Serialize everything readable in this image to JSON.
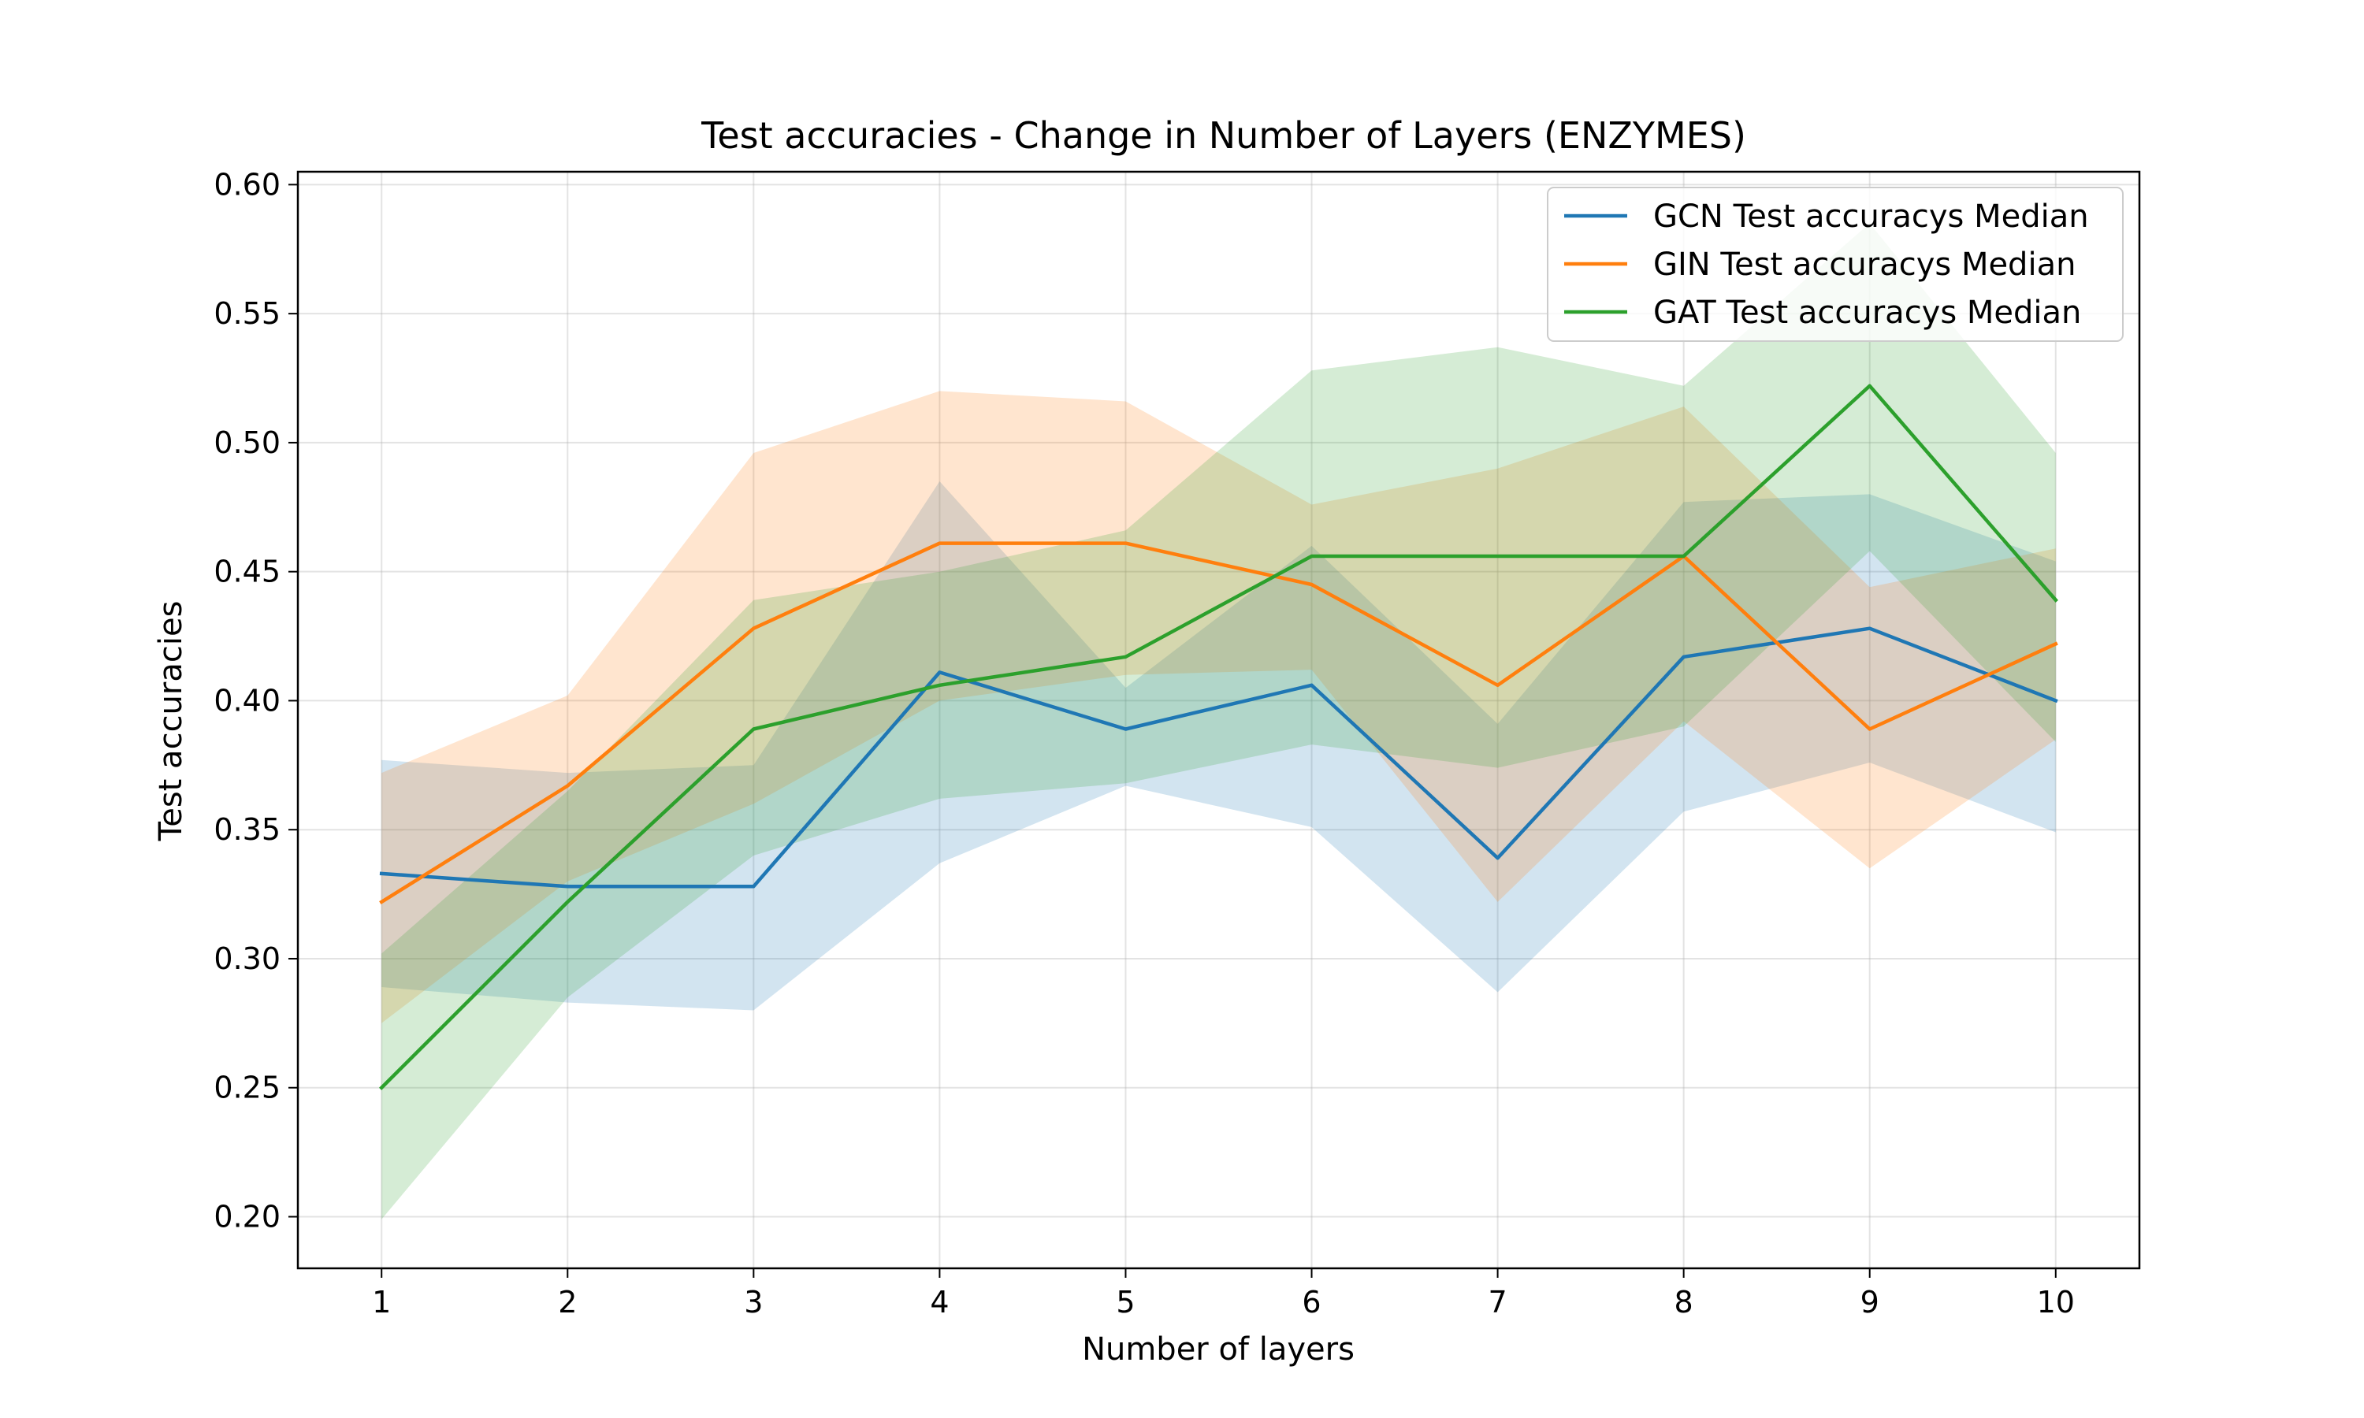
{
  "chart_data": {
    "type": "line",
    "title": "Test accuracies - Change in Number of Layers (ENZYMES)",
    "xlabel": "Number of layers",
    "ylabel": "Test accuracies",
    "x": [
      1,
      2,
      3,
      4,
      5,
      6,
      7,
      8,
      9,
      10
    ],
    "xlim": [
      0.55,
      10.45
    ],
    "ylim": [
      0.18,
      0.605
    ],
    "yticks": [
      0.2,
      0.25,
      0.3,
      0.35,
      0.4,
      0.45,
      0.5,
      0.55,
      0.6
    ],
    "ytick_labels": [
      "0.20",
      "0.25",
      "0.30",
      "0.35",
      "0.40",
      "0.45",
      "0.50",
      "0.55",
      "0.60"
    ],
    "xtick_labels": [
      "1",
      "2",
      "3",
      "4",
      "5",
      "6",
      "7",
      "8",
      "9",
      "10"
    ],
    "grid": true,
    "legend_position": "top-right",
    "series": [
      {
        "name": "GCN Test accuracys Median",
        "color": "#1f77b4",
        "values": [
          0.333,
          0.328,
          0.328,
          0.411,
          0.389,
          0.406,
          0.339,
          0.417,
          0.428,
          0.4
        ],
        "band_upper": [
          0.377,
          0.372,
          0.375,
          0.485,
          0.405,
          0.46,
          0.391,
          0.477,
          0.48,
          0.454
        ],
        "band_lower": [
          0.289,
          0.283,
          0.28,
          0.337,
          0.367,
          0.351,
          0.287,
          0.357,
          0.376,
          0.349
        ]
      },
      {
        "name": "GIN Test accuracys Median",
        "color": "#ff7f0e",
        "values": [
          0.322,
          0.367,
          0.428,
          0.461,
          0.461,
          0.445,
          0.406,
          0.456,
          0.389,
          0.422
        ],
        "band_upper": [
          0.372,
          0.402,
          0.496,
          0.52,
          0.516,
          0.476,
          0.49,
          0.514,
          0.444,
          0.459
        ],
        "band_lower": [
          0.275,
          0.33,
          0.36,
          0.4,
          0.41,
          0.412,
          0.322,
          0.392,
          0.335,
          0.385
        ]
      },
      {
        "name": "GAT Test accuracys Median",
        "color": "#2ca02c",
        "values": [
          0.25,
          0.322,
          0.389,
          0.406,
          0.417,
          0.456,
          0.456,
          0.456,
          0.522,
          0.439
        ],
        "band_upper": [
          0.302,
          0.365,
          0.439,
          0.45,
          0.466,
          0.528,
          0.537,
          0.522,
          0.585,
          0.496
        ],
        "band_lower": [
          0.199,
          0.285,
          0.34,
          0.362,
          0.368,
          0.383,
          0.374,
          0.39,
          0.458,
          0.384
        ]
      }
    ]
  }
}
